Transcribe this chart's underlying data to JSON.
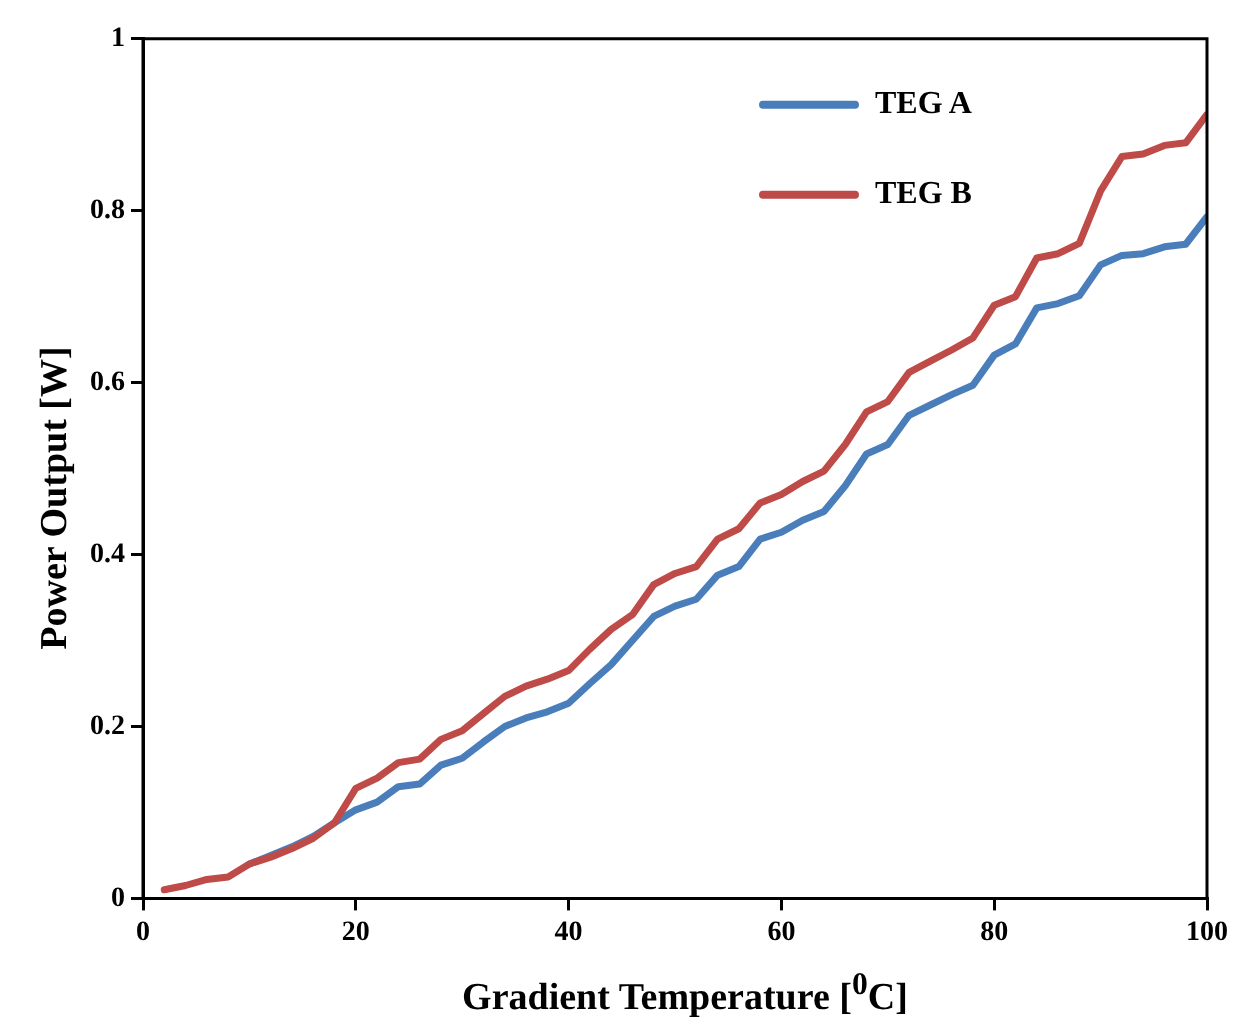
{
  "chart_data": {
    "type": "line",
    "xlabel": "Gradient Temperature [$^{0}$C]",
    "ylabel": "Power Output [W]",
    "x": [
      2,
      4,
      6,
      8,
      10,
      12,
      14,
      16,
      18,
      20,
      22,
      24,
      26,
      28,
      30,
      32,
      34,
      36,
      38,
      40,
      42,
      44,
      46,
      48,
      50,
      52,
      54,
      56,
      58,
      60,
      62,
      64,
      66,
      68,
      70,
      72,
      74,
      76,
      78,
      80,
      82,
      84,
      86,
      88,
      90,
      92,
      94,
      96,
      98,
      100
    ],
    "series": [
      {
        "name": "TEG A",
        "color": "#4a7ebb",
        "values": [
          null,
          null,
          null,
          null,
          0.04,
          0.05,
          0.06,
          0.072,
          0.088,
          0.103,
          0.112,
          0.13,
          0.133,
          0.155,
          0.163,
          0.182,
          0.2,
          0.21,
          0.217,
          0.227,
          0.25,
          0.272,
          0.3,
          0.328,
          0.34,
          0.348,
          0.376,
          0.386,
          0.418,
          0.426,
          0.44,
          0.45,
          0.48,
          0.517,
          0.528,
          0.562,
          0.574,
          0.586,
          0.597,
          0.632,
          0.645,
          0.687,
          0.692,
          0.701,
          0.737,
          0.748,
          0.75,
          0.758,
          0.761,
          0.793
        ]
      },
      {
        "name": "TEG B",
        "color": "#be4b48",
        "values": [
          0.01,
          0.015,
          0.022,
          0.025,
          0.04,
          0.048,
          0.058,
          0.07,
          0.088,
          0.128,
          0.14,
          0.158,
          0.162,
          0.185,
          0.195,
          0.215,
          0.235,
          0.247,
          0.255,
          0.265,
          0.29,
          0.313,
          0.33,
          0.365,
          0.378,
          0.386,
          0.418,
          0.43,
          0.46,
          0.47,
          0.485,
          0.497,
          0.528,
          0.566,
          0.578,
          0.612,
          0.625,
          0.638,
          0.652,
          0.69,
          0.7,
          0.745,
          0.75,
          0.762,
          0.823,
          0.863,
          0.866,
          0.876,
          0.879,
          0.912
        ]
      }
    ],
    "xlim": [
      0,
      100
    ],
    "xticks": [
      0,
      20,
      40,
      60,
      80,
      100
    ],
    "ylim": [
      0,
      1
    ],
    "yticks": [
      0,
      0.2,
      0.4,
      0.6,
      0.8,
      1
    ],
    "legend": "top right",
    "grid": false,
    "marker": "none",
    "line_style": "solid"
  }
}
